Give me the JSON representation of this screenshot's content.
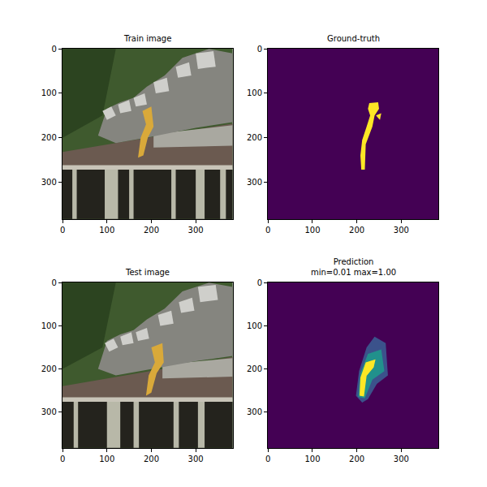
{
  "chart_data": [
    {
      "type": "image",
      "title": "Train image",
      "xlim": [
        -0.5,
        383.5
      ],
      "ylim": [
        383.5,
        -0.5
      ],
      "xticks": [
        0,
        100,
        200,
        300
      ],
      "yticks": [
        0,
        100,
        200,
        300
      ],
      "background": "#3f5a2e",
      "regions": [
        {
          "color": "#2c4420",
          "x": [
            0,
            120,
            90,
            0
          ],
          "y": [
            0,
            0,
            150,
            200
          ]
        },
        {
          "color": "#6b5a50",
          "x": [
            0,
            383,
            383,
            0
          ],
          "y": [
            232,
            168,
            268,
            268
          ]
        },
        {
          "color": "#a9a8a0",
          "x": [
            205,
            383,
            383,
            205
          ],
          "y": [
            192,
            172,
            218,
            222
          ]
        },
        {
          "color": "#c8c4b8",
          "x": [
            0,
            383,
            383,
            0
          ],
          "y": [
            262,
            262,
            272,
            272
          ]
        },
        {
          "color": "#24231d",
          "x": [
            0,
            383,
            383,
            0
          ],
          "y": [
            272,
            272,
            383,
            383
          ]
        },
        {
          "color": "#b8b8a8",
          "x": [
            22,
            32,
            32,
            22
          ],
          "y": [
            272,
            272,
            383,
            383
          ]
        },
        {
          "color": "#b8b8a8",
          "x": [
            95,
            125,
            125,
            95
          ],
          "y": [
            272,
            272,
            383,
            383
          ]
        },
        {
          "color": "#b8b8a8",
          "x": [
            150,
            160,
            160,
            150
          ],
          "y": [
            272,
            272,
            383,
            383
          ]
        },
        {
          "color": "#b8b8a8",
          "x": [
            245,
            255,
            255,
            245
          ],
          "y": [
            272,
            272,
            383,
            383
          ]
        },
        {
          "color": "#b8b8a8",
          "x": [
            300,
            320,
            320,
            300
          ],
          "y": [
            272,
            272,
            383,
            383
          ]
        },
        {
          "color": "#b8b8a8",
          "x": [
            355,
            368,
            368,
            355
          ],
          "y": [
            272,
            272,
            383,
            383
          ]
        },
        {
          "color": "#85857f",
          "x": [
            80,
            100,
            130,
            160,
            190,
            230,
            270,
            330,
            383,
            383,
            300,
            200,
            120
          ],
          "y": [
            195,
            135,
            120,
            110,
            85,
            60,
            20,
            0,
            10,
            165,
            178,
            198,
            212
          ]
        },
        {
          "color": "#cfcfcb",
          "x": [
            90,
            110,
            120,
            100
          ],
          "y": [
            140,
            130,
            150,
            160
          ]
        },
        {
          "color": "#cfcfcb",
          "x": [
            125,
            150,
            155,
            130
          ],
          "y": [
            125,
            115,
            140,
            145
          ]
        },
        {
          "color": "#cfcfcb",
          "x": [
            160,
            185,
            190,
            165
          ],
          "y": [
            110,
            100,
            125,
            130
          ]
        },
        {
          "color": "#cfcfcb",
          "x": [
            205,
            235,
            240,
            210
          ],
          "y": [
            75,
            65,
            95,
            100
          ]
        },
        {
          "color": "#cfcfcb",
          "x": [
            255,
            285,
            290,
            260
          ],
          "y": [
            40,
            30,
            60,
            65
          ]
        },
        {
          "color": "#cfcfcb",
          "x": [
            300,
            340,
            345,
            305
          ],
          "y": [
            10,
            5,
            40,
            45
          ]
        },
        {
          "color": "#d9a93a",
          "x": [
            180,
            200,
            205,
            192,
            182,
            170,
            176,
            188
          ],
          "y": [
            140,
            130,
            175,
            200,
            240,
            245,
            200,
            170
          ]
        }
      ]
    },
    {
      "type": "image",
      "title": "Ground-truth",
      "xlim": [
        -0.5,
        383.5
      ],
      "ylim": [
        383.5,
        -0.5
      ],
      "xticks": [
        0,
        100,
        200,
        300
      ],
      "yticks": [
        0,
        100,
        200,
        300
      ],
      "background": "#440154",
      "regions": [
        {
          "color": "#fde725",
          "x": [
            228,
            248,
            250,
            240,
            235,
            228,
            220,
            218,
            210,
            208,
            212,
            222,
            230,
            225
          ],
          "y": [
            122,
            120,
            135,
            150,
            175,
            195,
            215,
            272,
            272,
            240,
            205,
            175,
            150,
            135
          ]
        },
        {
          "color": "#fde725",
          "x": [
            243,
            255,
            252
          ],
          "y": [
            150,
            145,
            160
          ]
        }
      ]
    },
    {
      "type": "image",
      "title": "Test image",
      "xlim": [
        -0.5,
        383.5
      ],
      "ylim": [
        383.5,
        -0.5
      ],
      "xticks": [
        0,
        100,
        200,
        300
      ],
      "yticks": [
        0,
        100,
        200,
        300
      ],
      "background": "#3f5a2e",
      "regions": [
        {
          "color": "#2c4420",
          "x": [
            0,
            120,
            90,
            0
          ],
          "y": [
            0,
            0,
            150,
            200
          ]
        },
        {
          "color": "#6b5a50",
          "x": [
            0,
            383,
            383,
            0
          ],
          "y": [
            240,
            172,
            268,
            268
          ]
        },
        {
          "color": "#a9a8a0",
          "x": [
            225,
            383,
            383,
            225
          ],
          "y": [
            190,
            175,
            218,
            222
          ]
        },
        {
          "color": "#c8c4b8",
          "x": [
            0,
            383,
            383,
            0
          ],
          "y": [
            266,
            266,
            276,
            276
          ]
        },
        {
          "color": "#24231d",
          "x": [
            0,
            383,
            383,
            0
          ],
          "y": [
            276,
            276,
            383,
            383
          ]
        },
        {
          "color": "#b8b8a8",
          "x": [
            25,
            35,
            35,
            25
          ],
          "y": [
            276,
            276,
            383,
            383
          ]
        },
        {
          "color": "#b8b8a8",
          "x": [
            100,
            130,
            130,
            100
          ],
          "y": [
            276,
            276,
            383,
            383
          ]
        },
        {
          "color": "#b8b8a8",
          "x": [
            160,
            172,
            172,
            160
          ],
          "y": [
            276,
            276,
            383,
            383
          ]
        },
        {
          "color": "#b8b8a8",
          "x": [
            250,
            262,
            262,
            250
          ],
          "y": [
            276,
            276,
            383,
            383
          ]
        },
        {
          "color": "#b8b8a8",
          "x": [
            305,
            320,
            320,
            305
          ],
          "y": [
            276,
            276,
            383,
            383
          ]
        },
        {
          "color": "#85857f",
          "x": [
            80,
            100,
            130,
            160,
            190,
            230,
            270,
            330,
            383,
            383,
            300,
            200,
            120
          ],
          "y": [
            200,
            135,
            120,
            110,
            85,
            60,
            20,
            0,
            10,
            170,
            182,
            200,
            215
          ]
        },
        {
          "color": "#cfcfcb",
          "x": [
            95,
            115,
            125,
            105
          ],
          "y": [
            140,
            130,
            150,
            160
          ]
        },
        {
          "color": "#cfcfcb",
          "x": [
            130,
            155,
            160,
            135
          ],
          "y": [
            125,
            115,
            140,
            145
          ]
        },
        {
          "color": "#cfcfcb",
          "x": [
            165,
            190,
            195,
            170
          ],
          "y": [
            115,
            105,
            130,
            135
          ]
        },
        {
          "color": "#cfcfcb",
          "x": [
            215,
            245,
            250,
            220
          ],
          "y": [
            75,
            65,
            95,
            100
          ]
        },
        {
          "color": "#cfcfcb",
          "x": [
            262,
            292,
            297,
            267
          ],
          "y": [
            45,
            35,
            65,
            70
          ]
        },
        {
          "color": "#cfcfcb",
          "x": [
            305,
            345,
            350,
            310
          ],
          "y": [
            10,
            5,
            40,
            45
          ]
        },
        {
          "color": "#d9a93a",
          "x": [
            200,
            225,
            228,
            212,
            200,
            188,
            194,
            208
          ],
          "y": [
            150,
            140,
            185,
            210,
            255,
            262,
            215,
            185
          ]
        }
      ]
    },
    {
      "type": "image",
      "title": "Prediction\nmin=0.01 max=1.00",
      "xlim": [
        -0.5,
        383.5
      ],
      "ylim": [
        383.5,
        -0.5
      ],
      "xticks": [
        0,
        100,
        200,
        300
      ],
      "yticks": [
        0,
        100,
        200,
        300
      ],
      "background": "#440154",
      "regions": [
        {
          "color": "#3b528b",
          "x": [
            222,
            240,
            265,
            270,
            245,
            225,
            212,
            198,
            205
          ],
          "y": [
            150,
            125,
            140,
            215,
            235,
            270,
            278,
            262,
            205
          ]
        },
        {
          "color": "#21918c",
          "x": [
            225,
            255,
            262,
            235,
            218,
            203,
            208
          ],
          "y": [
            165,
            155,
            205,
            225,
            268,
            265,
            210
          ]
        },
        {
          "color": "#fde725",
          "x": [
            220,
            242,
            238,
            222,
            216,
            206,
            208
          ],
          "y": [
            185,
            178,
            196,
            216,
            264,
            262,
            220
          ]
        }
      ]
    }
  ]
}
